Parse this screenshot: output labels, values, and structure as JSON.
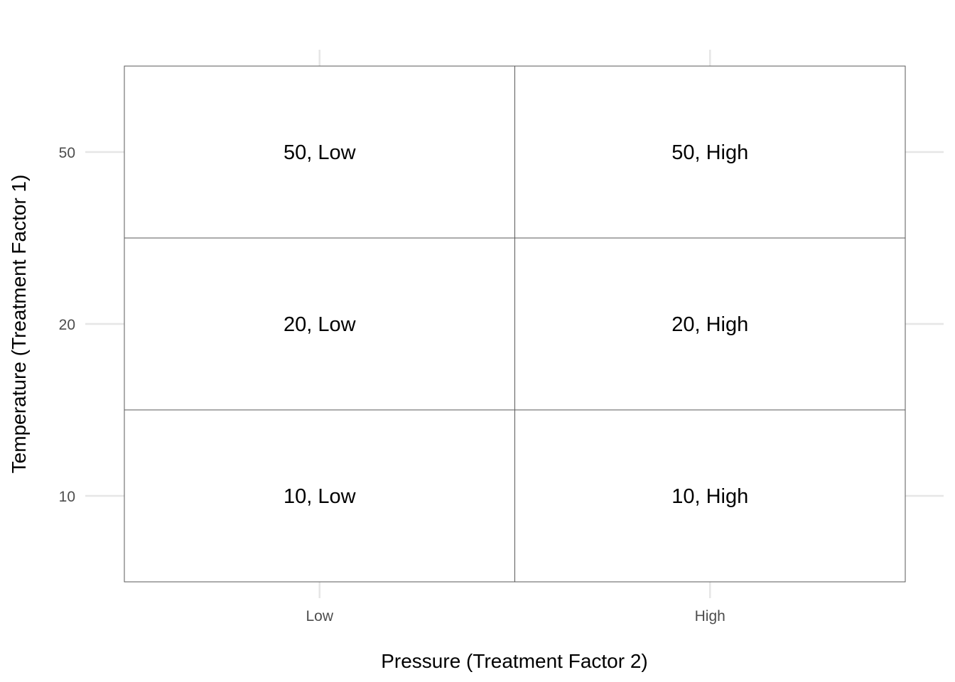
{
  "chart_data": {
    "type": "table",
    "title": "",
    "xlabel": "Pressure (Treatment Factor 2)",
    "ylabel": "Temperature (Treatment Factor 1)",
    "x_categories": [
      "Low",
      "High"
    ],
    "y_categories": [
      "10",
      "20",
      "50"
    ],
    "cells": [
      {
        "x": "Low",
        "y": "50",
        "label": "50, Low"
      },
      {
        "x": "High",
        "y": "50",
        "label": "50, High"
      },
      {
        "x": "Low",
        "y": "20",
        "label": "20, Low"
      },
      {
        "x": "High",
        "y": "20",
        "label": "20, High"
      },
      {
        "x": "Low",
        "y": "10",
        "label": "10, Low"
      },
      {
        "x": "High",
        "y": "10",
        "label": "10, High"
      }
    ],
    "grid": true,
    "legend": "none"
  }
}
